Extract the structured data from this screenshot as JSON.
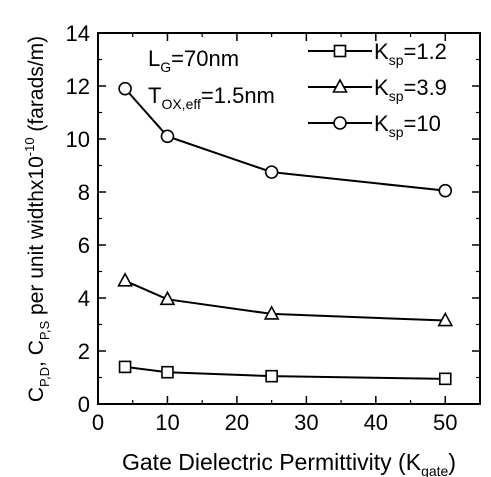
{
  "chart_data": {
    "type": "line",
    "xlabel": {
      "base": "Gate Dielectric Permittivity (K",
      "sub": "gate",
      "tail": ")"
    },
    "ylabel": {
      "parts": [
        {
          "t": "C",
          "s": false
        },
        {
          "t": "P,D",
          "s": true
        },
        {
          "t": ", C",
          "s": false
        },
        {
          "t": "P,S",
          "s": true
        },
        {
          "t": " per unit widthx10",
          "s": false
        },
        {
          "t": "-10",
          "sup": true
        },
        {
          "t": " (farads/m)",
          "s": false
        }
      ]
    },
    "xlim": [
      0,
      55
    ],
    "ylim": [
      0,
      14
    ],
    "xticks": [
      "0",
      "10",
      "20",
      "30",
      "40",
      "50"
    ],
    "yticks": [
      "0",
      "2",
      "4",
      "6",
      "8",
      "10",
      "12",
      "14"
    ],
    "annotations": [
      {
        "base": "L",
        "sub": "G",
        "tail": "=70nm"
      },
      {
        "base": "T",
        "sub": "OX,eff",
        "tail": "=1.5nm"
      }
    ],
    "series": [
      {
        "name": "K",
        "name_sub": "sp",
        "name_tail": "=1.2",
        "marker": "square",
        "x": [
          3.9,
          10,
          25,
          50
        ],
        "y": [
          1.4,
          1.2,
          1.05,
          0.95
        ]
      },
      {
        "name": "K",
        "name_sub": "sp",
        "name_tail": "=3.9",
        "marker": "triangle",
        "x": [
          3.9,
          10,
          25,
          50
        ],
        "y": [
          4.65,
          3.95,
          3.4,
          3.15
        ]
      },
      {
        "name": "K",
        "name_sub": "sp",
        "name_tail": "=10",
        "marker": "circle",
        "x": [
          3.9,
          10,
          25,
          50
        ],
        "y": [
          11.9,
          10.1,
          8.75,
          8.05
        ]
      }
    ],
    "legend_position": "top-right",
    "grid": false,
    "line_color": "#000000"
  }
}
